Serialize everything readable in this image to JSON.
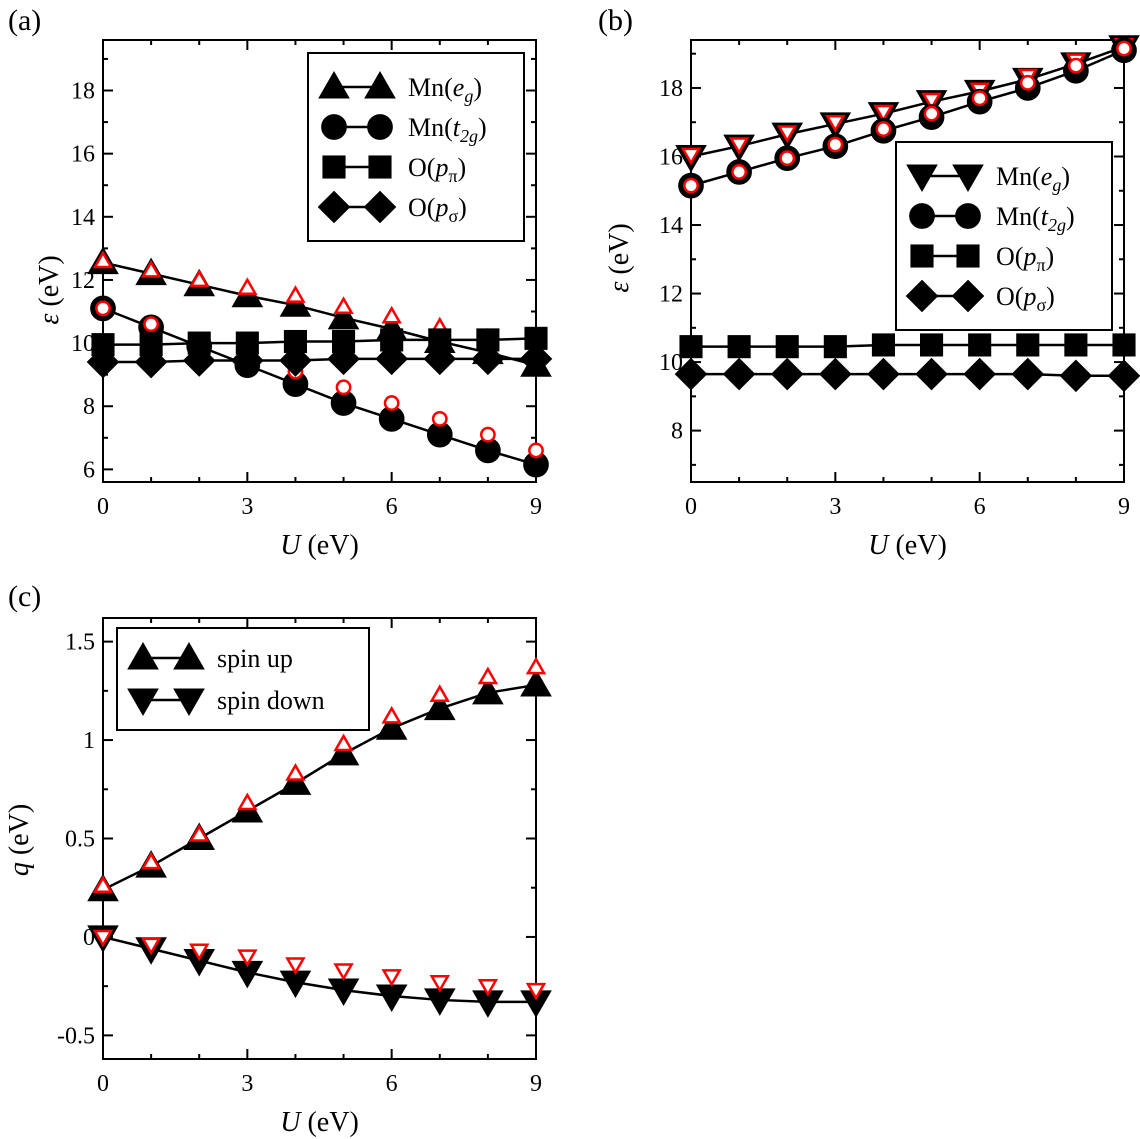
{
  "chart_data": [
    {
      "id": "a",
      "type": "line",
      "panel_label": "(a)",
      "xlabel_var": "U",
      "xlabel_unit": " (eV)",
      "ylabel_var": "ε",
      "ylabel_unit": " (eV)",
      "xlim": [
        0,
        9
      ],
      "ylim": [
        5.6,
        19.6
      ],
      "xticks": [
        0,
        3,
        6,
        9
      ],
      "yticks": [
        6,
        8,
        10,
        12,
        14,
        16,
        18
      ],
      "ytick_labels": [
        "6",
        "8",
        "10",
        "12",
        "14",
        "16",
        "18"
      ],
      "x": [
        0,
        1,
        2,
        3,
        4,
        5,
        6,
        7,
        8,
        9
      ],
      "legend_position": "top-right",
      "series": [
        {
          "name": "Mn(eg)",
          "legend_base": "Mn(",
          "legend_sym": "e",
          "legend_sub": "g",
          "legend_close": ")",
          "marker": "triangle-up",
          "values": [
            12.55,
            12.2,
            11.85,
            11.5,
            11.2,
            10.8,
            10.45,
            10.05,
            9.7,
            9.3
          ],
          "red_values": [
            12.6,
            12.3,
            12.0,
            11.75,
            11.5,
            11.15,
            10.85,
            10.5,
            10.15,
            9.8
          ]
        },
        {
          "name": "Mn(t2g)",
          "legend_base": "Mn(",
          "legend_sym": "t",
          "legend_sub": "2g",
          "legend_close": ")",
          "marker": "circle",
          "values": [
            11.1,
            10.5,
            9.9,
            9.3,
            8.7,
            8.1,
            7.6,
            7.1,
            6.6,
            6.15
          ],
          "red_values": [
            11.1,
            10.6,
            10.1,
            9.6,
            9.1,
            8.6,
            8.1,
            7.6,
            7.1,
            6.6
          ]
        },
        {
          "name": "O(pπ)",
          "legend_base": "O(",
          "legend_sym": "p",
          "legend_sub": "π",
          "legend_close": ")",
          "marker": "square",
          "values": [
            9.95,
            9.95,
            10.0,
            10.0,
            10.05,
            10.05,
            10.1,
            10.1,
            10.1,
            10.15
          ],
          "red_values": null
        },
        {
          "name": "O(pσ)",
          "legend_base": "O(",
          "legend_sym": "p",
          "legend_sub": "σ",
          "legend_close": ")",
          "marker": "diamond",
          "values": [
            9.4,
            9.4,
            9.45,
            9.45,
            9.45,
            9.5,
            9.5,
            9.5,
            9.5,
            9.5
          ],
          "red_values": null
        }
      ]
    },
    {
      "id": "b",
      "type": "line",
      "panel_label": "(b)",
      "xlabel_var": "U",
      "xlabel_unit": " (eV)",
      "ylabel_var": "ε",
      "ylabel_unit": " (eV)",
      "xlim": [
        0,
        9
      ],
      "ylim": [
        6.5,
        19.4
      ],
      "xticks": [
        0,
        3,
        6,
        9
      ],
      "yticks": [
        8,
        10,
        12,
        14,
        16,
        18
      ],
      "ytick_labels": [
        "8",
        "10",
        "12",
        "14",
        "16",
        "18"
      ],
      "x": [
        0,
        1,
        2,
        3,
        4,
        5,
        6,
        7,
        8,
        9
      ],
      "legend_position": "right",
      "series": [
        {
          "name": "Mn(eg)",
          "legend_base": "Mn(",
          "legend_sym": "e",
          "legend_sub": "g",
          "legend_close": ")",
          "marker": "triangle-down",
          "values": [
            16.0,
            16.3,
            16.65,
            16.95,
            17.25,
            17.6,
            17.9,
            18.25,
            18.7,
            19.2
          ],
          "red_values": [
            16.05,
            16.35,
            16.7,
            17.0,
            17.3,
            17.65,
            17.95,
            18.35,
            18.8,
            19.25
          ]
        },
        {
          "name": "Mn(t2g)",
          "legend_base": "Mn(",
          "legend_sym": "t",
          "legend_sub": "2g",
          "legend_close": ")",
          "marker": "circle",
          "values": [
            15.15,
            15.55,
            15.95,
            16.3,
            16.75,
            17.15,
            17.6,
            18.0,
            18.5,
            19.1
          ],
          "red_values": [
            15.15,
            15.55,
            15.95,
            16.35,
            16.8,
            17.25,
            17.7,
            18.15,
            18.65,
            19.15
          ]
        },
        {
          "name": "O(pπ)",
          "legend_base": "O(",
          "legend_sym": "p",
          "legend_sub": "π",
          "legend_close": ")",
          "marker": "square",
          "values": [
            10.45,
            10.45,
            10.45,
            10.45,
            10.5,
            10.5,
            10.5,
            10.5,
            10.5,
            10.5
          ],
          "red_values": null
        },
        {
          "name": "O(pσ)",
          "legend_base": "O(",
          "legend_sym": "p",
          "legend_sub": "σ",
          "legend_close": ")",
          "marker": "diamond",
          "values": [
            9.65,
            9.65,
            9.65,
            9.65,
            9.65,
            9.65,
            9.65,
            9.65,
            9.6,
            9.6
          ],
          "red_values": null
        }
      ]
    },
    {
      "id": "c",
      "type": "line",
      "panel_label": "(c)",
      "xlabel_var": "U",
      "xlabel_unit": " (eV)",
      "ylabel_var": "q",
      "ylabel_unit": " (eV)",
      "xlim": [
        0,
        9
      ],
      "ylim": [
        -0.62,
        1.62
      ],
      "xticks": [
        0,
        3,
        6,
        9
      ],
      "yticks": [
        -0.5,
        0,
        0.5,
        1,
        1.5
      ],
      "ytick_labels": [
        "-0.5",
        "0",
        "0.5",
        "1",
        "1.5"
      ],
      "x": [
        0,
        1,
        2,
        3,
        4,
        5,
        6,
        7,
        8,
        9
      ],
      "legend_position": "top-left",
      "series": [
        {
          "name": "spin up",
          "legend_base": "spin up",
          "legend_sym": "",
          "legend_sub": "",
          "legend_close": "",
          "marker": "triangle-up",
          "values": [
            0.24,
            0.36,
            0.5,
            0.64,
            0.78,
            0.93,
            1.06,
            1.16,
            1.24,
            1.28
          ],
          "red_values": [
            0.26,
            0.38,
            0.52,
            0.68,
            0.83,
            0.98,
            1.12,
            1.23,
            1.32,
            1.37
          ]
        },
        {
          "name": "spin down",
          "legend_base": "spin down",
          "legend_sym": "",
          "legend_sub": "",
          "legend_close": "",
          "marker": "triangle-down",
          "values": [
            0.0,
            -0.06,
            -0.12,
            -0.18,
            -0.23,
            -0.27,
            -0.3,
            -0.32,
            -0.33,
            -0.33
          ],
          "red_values": [
            0.0,
            -0.04,
            -0.07,
            -0.1,
            -0.14,
            -0.17,
            -0.2,
            -0.23,
            -0.25,
            -0.27
          ]
        }
      ]
    }
  ]
}
